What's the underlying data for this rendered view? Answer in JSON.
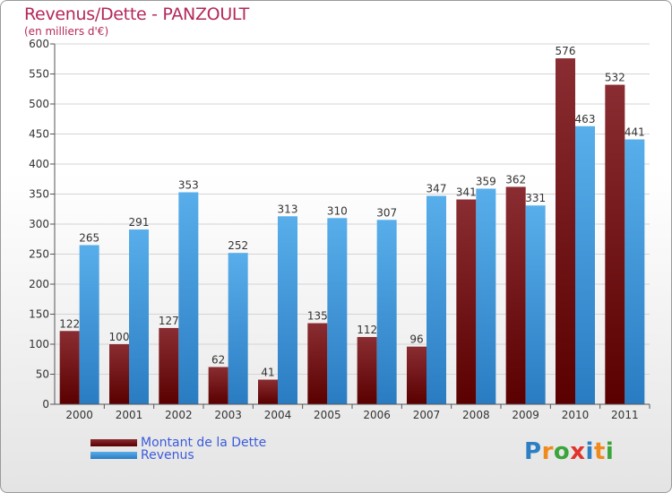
{
  "title": "Revenus/Dette - PANZOULT",
  "subtitle": "(en milliers d'€)",
  "colors": {
    "dette": "#6b0f0f",
    "revenus": "#3f9be0"
  },
  "logo": {
    "letters": [
      "P",
      "r",
      "o",
      "x",
      "i",
      "t",
      "i"
    ],
    "colors": [
      "#2c7fc2",
      "#f08a1c",
      "#3aa53a",
      "#e0342c",
      "#2c7fc2",
      "#f08a1c",
      "#3aa53a"
    ]
  },
  "chart_data": {
    "type": "bar",
    "title": "Revenus/Dette - PANZOULT",
    "subtitle": "(en milliers d'€)",
    "categories": [
      "2000",
      "2001",
      "2002",
      "2003",
      "2004",
      "2005",
      "2006",
      "2007",
      "2008",
      "2009",
      "2010",
      "2011"
    ],
    "series": [
      {
        "name": "Montant de la Dette",
        "values": [
          122,
          100,
          127,
          62,
          41,
          135,
          112,
          96,
          341,
          362,
          576,
          532
        ]
      },
      {
        "name": "Revenus",
        "values": [
          265,
          291,
          353,
          252,
          313,
          310,
          307,
          347,
          359,
          331,
          463,
          441
        ]
      }
    ],
    "ylim": [
      0,
      600
    ],
    "yticks": [
      0,
      50,
      100,
      150,
      200,
      250,
      300,
      350,
      400,
      450,
      500,
      550,
      600
    ],
    "grid": true,
    "legend": "bottom-left"
  }
}
